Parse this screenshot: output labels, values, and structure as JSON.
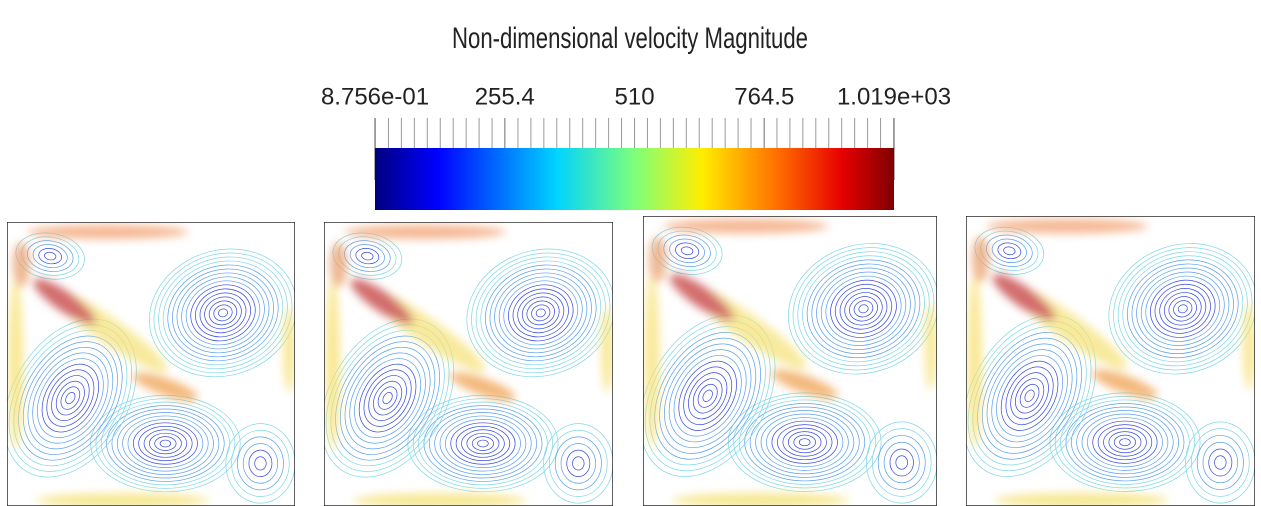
{
  "colorbar": {
    "title": "Non-dimensional velocity Magnitude",
    "range": [
      0.8756,
      1019
    ],
    "ticks": [
      {
        "value": 0.8756,
        "label": "8.756e-01"
      },
      255.4,
      510,
      764.5,
      {
        "value": 1019,
        "label": "1.019e+03"
      }
    ]
  }
}
